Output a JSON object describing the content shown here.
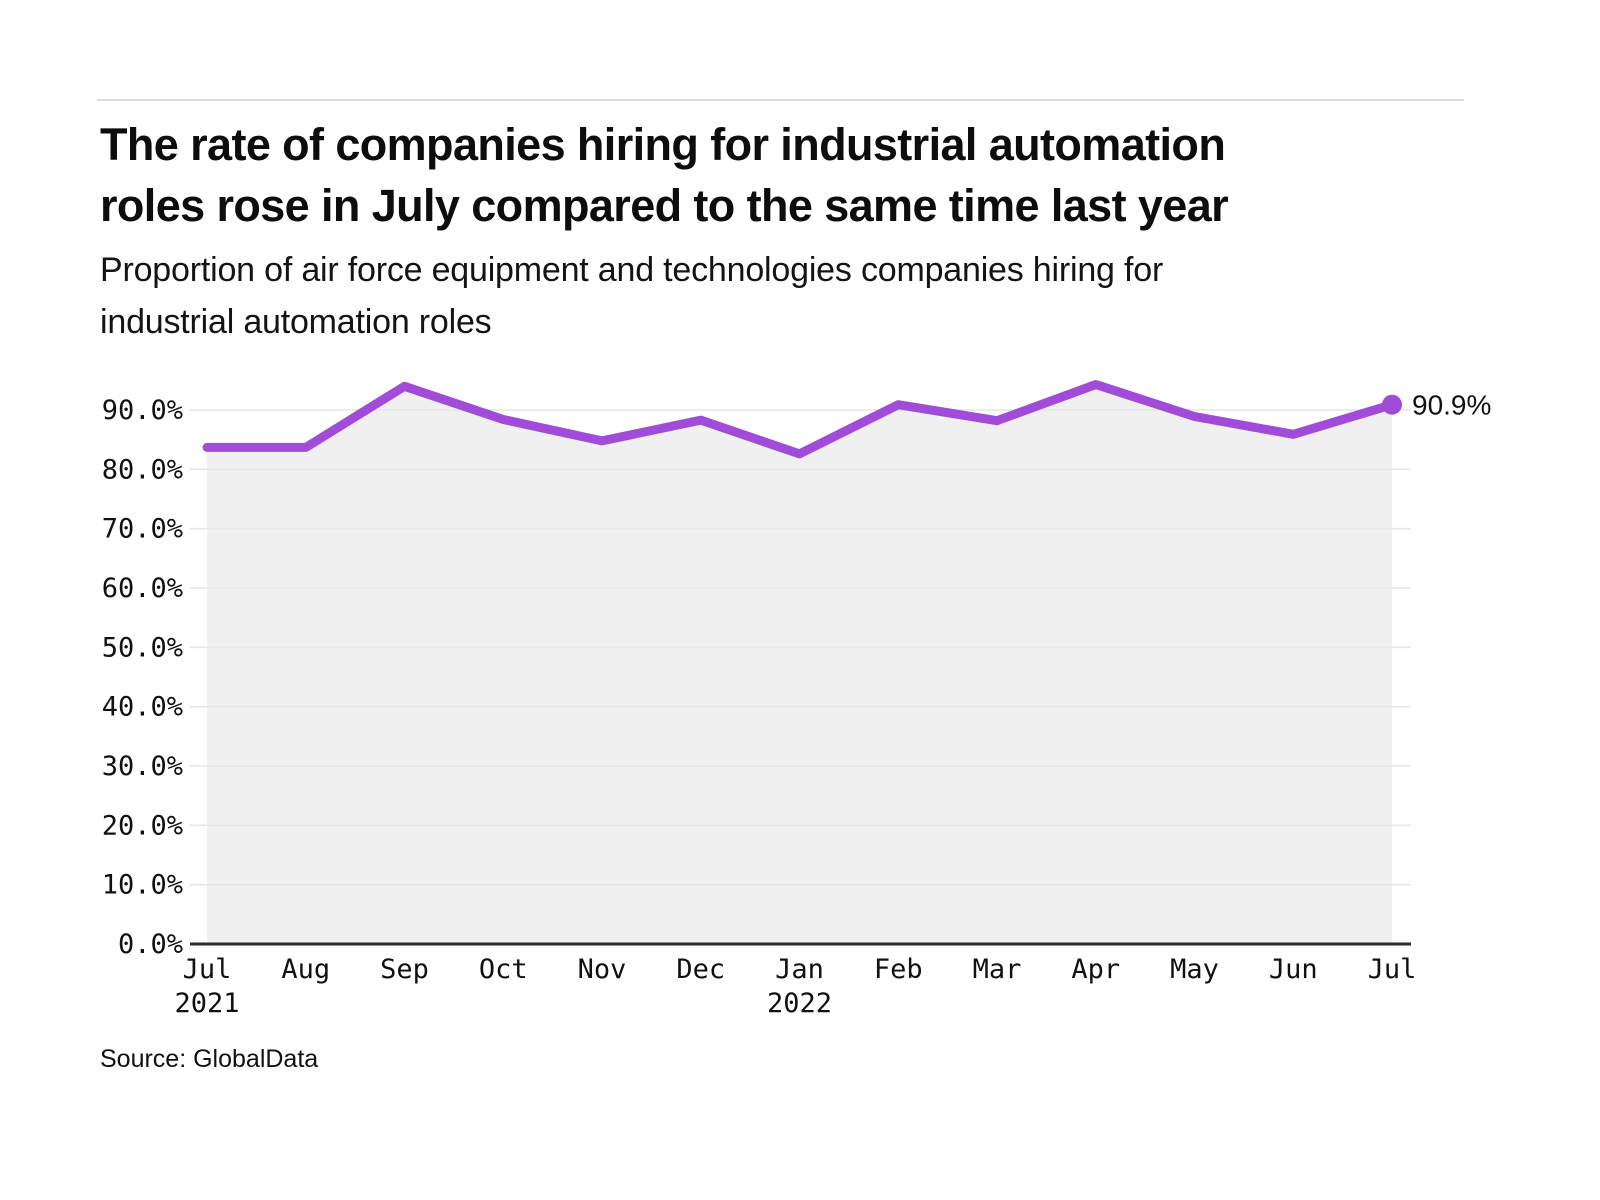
{
  "header": {
    "title_lines": [
      "The rate of companies hiring for industrial automation",
      "roles rose in July compared to the same time last year"
    ],
    "subtitle_lines": [
      "Proportion of air force equipment and technologies companies hiring for",
      "industrial automation roles"
    ]
  },
  "source": {
    "label": "Source: GlobalData"
  },
  "chart_data": {
    "type": "area",
    "title": "The rate of companies hiring for industrial automation roles rose in July compared to the same time last year",
    "subtitle": "Proportion of air force equipment and technologies companies hiring for industrial automation roles",
    "categories": [
      "Jul",
      "Aug",
      "Sep",
      "Oct",
      "Nov",
      "Dec",
      "Jan",
      "Feb",
      "Mar",
      "Apr",
      "May",
      "Jun",
      "Jul"
    ],
    "x_year_labels": [
      {
        "index": 0,
        "label": "2021"
      },
      {
        "index": 6,
        "label": "2022"
      }
    ],
    "series": [
      {
        "name": "Proportion of air force equipment and technologies companies hiring for industrial automation roles",
        "values": [
          83.7,
          83.7,
          94.0,
          88.4,
          84.8,
          88.3,
          82.6,
          90.9,
          88.2,
          94.3,
          88.9,
          85.9,
          90.9
        ]
      }
    ],
    "end_point_label": "90.9%",
    "yticks": [
      {
        "value": 0,
        "label": "0.0%"
      },
      {
        "value": 10,
        "label": "10.0%"
      },
      {
        "value": 20,
        "label": "20.0%"
      },
      {
        "value": 30,
        "label": "30.0%"
      },
      {
        "value": 40,
        "label": "40.0%"
      },
      {
        "value": 50,
        "label": "50.0%"
      },
      {
        "value": 60,
        "label": "60.0%"
      },
      {
        "value": 70,
        "label": "70.0%"
      },
      {
        "value": 80,
        "label": "80.0%"
      },
      {
        "value": 90,
        "label": "90.0%"
      }
    ],
    "ylim": [
      0,
      97
    ],
    "xlabel": "",
    "ylabel": "",
    "grid": true,
    "legend": "none",
    "colors": {
      "line": "#A14CD9",
      "area": "#F0F0F0",
      "grid": "#E6E6E6",
      "axis_line": "#2B2B2B",
      "text": "#111111"
    }
  }
}
